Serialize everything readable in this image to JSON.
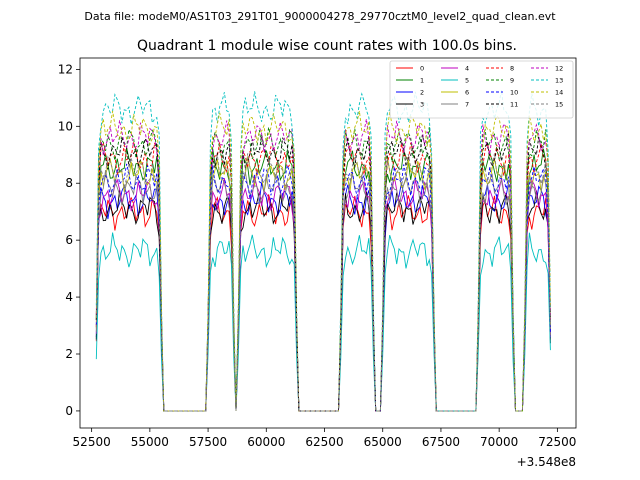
{
  "chart_data": {
    "type": "line",
    "suptitle": "Data file: modeM0/AS1T03_291T01_9000004278_29770cztM0_level2_quad_clean.evt",
    "title": "Quadrant 1 module wise count rates with 100.0s bins.",
    "xlabel": "",
    "ylabel": "",
    "x_offset_label": "+3.548e8",
    "xlim": [
      52000,
      73300
    ],
    "ylim": [
      -0.6,
      12.4
    ],
    "xticks": [
      52500,
      55000,
      57500,
      60000,
      62500,
      65000,
      67500,
      70000,
      72500
    ],
    "xtick_labels": [
      "52500",
      "55000",
      "57500",
      "60000",
      "62500",
      "65000",
      "67500",
      "70000",
      "72500"
    ],
    "yticks": [
      0,
      2,
      4,
      6,
      8,
      10,
      12
    ],
    "ytick_labels": [
      "0",
      "2",
      "4",
      "6",
      "8",
      "10",
      "12"
    ],
    "grid": false,
    "legend_position": "top-right",
    "good_time_intervals": [
      [
        52700,
        55500
      ],
      [
        57500,
        58600
      ],
      [
        58800,
        61300
      ],
      [
        63200,
        64600
      ],
      [
        65000,
        67200
      ],
      [
        69100,
        70600
      ],
      [
        71100,
        72200
      ]
    ],
    "series": [
      {
        "name": "0",
        "color": "#ff0000",
        "dash": "solid",
        "base": 7.0
      },
      {
        "name": "1",
        "color": "#008000",
        "dash": "solid",
        "base": 8.6
      },
      {
        "name": "2",
        "color": "#0000ff",
        "dash": "solid",
        "base": 7.4
      },
      {
        "name": "3",
        "color": "#000000",
        "dash": "solid",
        "base": 7.1
      },
      {
        "name": "4",
        "color": "#bf00bf",
        "dash": "solid",
        "base": 7.6
      },
      {
        "name": "5",
        "color": "#00bfbf",
        "dash": "solid",
        "base": 5.6
      },
      {
        "name": "6",
        "color": "#bfbf00",
        "dash": "solid",
        "base": 8.3
      },
      {
        "name": "7",
        "color": "#808080",
        "dash": "solid",
        "base": 7.8
      },
      {
        "name": "8",
        "color": "#ff0000",
        "dash": "dashed",
        "base": 8.9
      },
      {
        "name": "9",
        "color": "#008000",
        "dash": "dashed",
        "base": 9.4
      },
      {
        "name": "10",
        "color": "#0000ff",
        "dash": "dashed",
        "base": 8.1
      },
      {
        "name": "11",
        "color": "#000000",
        "dash": "dashed",
        "base": 9.1
      },
      {
        "name": "12",
        "color": "#bf00bf",
        "dash": "dashed",
        "base": 9.6
      },
      {
        "name": "13",
        "color": "#00bfbf",
        "dash": "dashed",
        "base": 10.6
      },
      {
        "name": "14",
        "color": "#bfbf00",
        "dash": "dashed",
        "base": 9.9
      },
      {
        "name": "15",
        "color": "#808080",
        "dash": "dashed",
        "base": 8.4
      }
    ]
  }
}
